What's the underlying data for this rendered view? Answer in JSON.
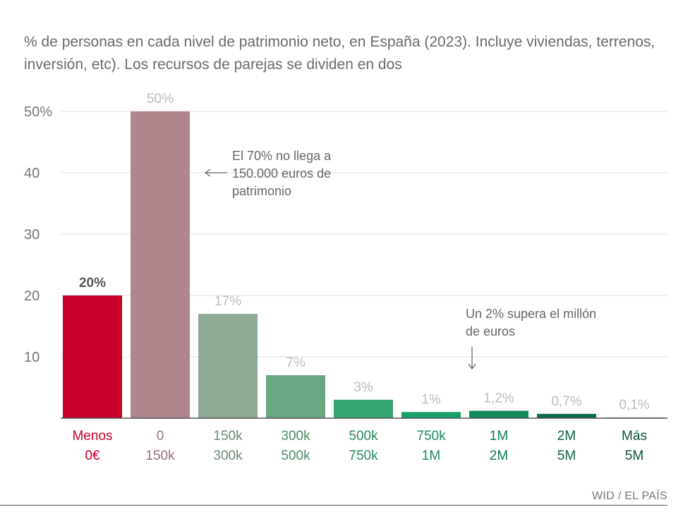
{
  "header": {
    "subtitle": "% de personas en cada nivel de patrimonio neto, en España (2023). Incluye viviendas, terrenos, inversión, etc). Los recursos de parejas se dividen en dos"
  },
  "source": "WID / EL PAÍS",
  "chart_data": {
    "type": "bar",
    "title": "",
    "xlabel": "",
    "ylabel": "",
    "ylim": [
      0,
      50
    ],
    "y_ticks": [
      {
        "value": 10,
        "label": "10"
      },
      {
        "value": 20,
        "label": "20"
      },
      {
        "value": 30,
        "label": "30"
      },
      {
        "value": 40,
        "label": "40"
      },
      {
        "value": 50,
        "label": "50%"
      }
    ],
    "grid": true,
    "categories": [
      {
        "line1": "Menos",
        "line2": "0€"
      },
      {
        "line1": "0",
        "line2": "150k"
      },
      {
        "line1": "150k",
        "line2": "300k"
      },
      {
        "line1": "300k",
        "line2": "500k"
      },
      {
        "line1": "500k",
        "line2": "750k"
      },
      {
        "line1": "750k",
        "line2": "1M"
      },
      {
        "line1": "1M",
        "line2": "2M"
      },
      {
        "line1": "2M",
        "line2": "5M"
      },
      {
        "line1": "Más",
        "line2": "5M"
      }
    ],
    "values": [
      20,
      50,
      17,
      7,
      3,
      1,
      1.2,
      0.7,
      0.1
    ],
    "data_labels": [
      "20%",
      "50%",
      "17%",
      "7%",
      "3%",
      "1%",
      "1,2%",
      "0,7%",
      "0,1%"
    ],
    "bar_colors": [
      "#c8002a",
      "#b0868c",
      "#8ea994",
      "#6aa883",
      "#36a670",
      "#18a06a",
      "#138a5a",
      "#106a48",
      "#0d5a3d"
    ],
    "label_colors": [
      "#c8002a",
      "#9c7077",
      "#6e8a74",
      "#4f8a66",
      "#2a8a5c",
      "#1a8a5c",
      "#127a50",
      "#0f6343",
      "#0d5238"
    ],
    "data_label_colors": [
      "#555555",
      "#bdbdbd",
      "#bdbdbd",
      "#bdbdbd",
      "#bdbdbd",
      "#bdbdbd",
      "#bdbdbd",
      "#bdbdbd",
      "#bdbdbd"
    ],
    "annotations": [
      {
        "lines": [
          "El 70% no llega a",
          "150.000 euros de",
          "patrimonio"
        ],
        "arrow": "left"
      },
      {
        "lines": [
          "Un 2% supera el millón",
          "de euros"
        ],
        "arrow": "down"
      }
    ]
  }
}
